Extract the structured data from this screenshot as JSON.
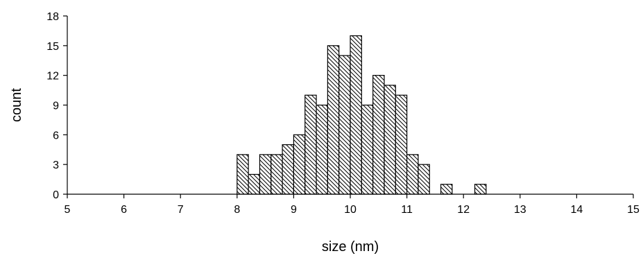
{
  "chart_data": {
    "type": "bar",
    "title": "",
    "xlabel": "size (nm)",
    "ylabel": "count",
    "xlim": [
      5,
      15
    ],
    "ylim": [
      0,
      18
    ],
    "x_ticks": [
      "5",
      "6",
      "7",
      "8",
      "9",
      "10",
      "11",
      "12",
      "13",
      "14",
      "15"
    ],
    "y_ticks": [
      "0",
      "3",
      "6",
      "9",
      "12",
      "15",
      "18"
    ],
    "bin_width": 0.2,
    "bins": [
      {
        "x": 8.0,
        "count": 4
      },
      {
        "x": 8.2,
        "count": 2
      },
      {
        "x": 8.4,
        "count": 4
      },
      {
        "x": 8.6,
        "count": 4
      },
      {
        "x": 8.8,
        "count": 5
      },
      {
        "x": 9.0,
        "count": 6
      },
      {
        "x": 9.2,
        "count": 10
      },
      {
        "x": 9.4,
        "count": 9
      },
      {
        "x": 9.6,
        "count": 15
      },
      {
        "x": 9.8,
        "count": 14
      },
      {
        "x": 10.0,
        "count": 16
      },
      {
        "x": 10.2,
        "count": 9
      },
      {
        "x": 10.4,
        "count": 12
      },
      {
        "x": 10.6,
        "count": 11
      },
      {
        "x": 10.8,
        "count": 10
      },
      {
        "x": 11.0,
        "count": 4
      },
      {
        "x": 11.2,
        "count": 3
      },
      {
        "x": 11.6,
        "count": 1
      },
      {
        "x": 12.2,
        "count": 1
      }
    ],
    "fill_pattern": "diagonal-hatch",
    "bar_color": "#000000",
    "grid": false,
    "legend": "none"
  }
}
